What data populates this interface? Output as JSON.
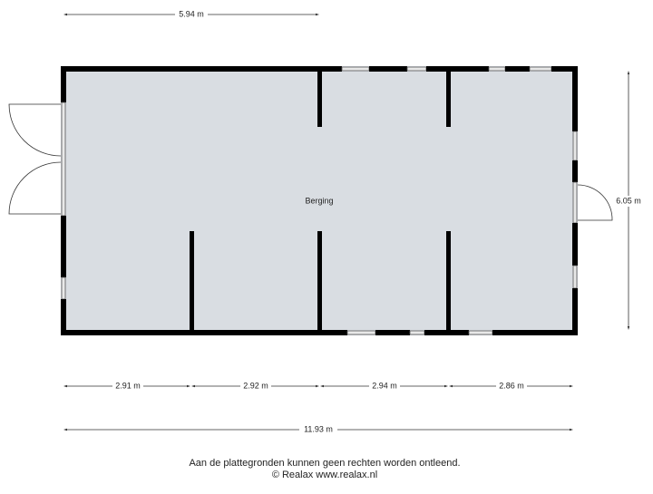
{
  "room": {
    "label": "Berging"
  },
  "dimensions": {
    "top": "5.94 m",
    "right": "6.05 m",
    "bottom": [
      "2.91 m",
      "2.92 m",
      "2.94 m",
      "2.86 m"
    ],
    "total": "11.93 m"
  },
  "footer": {
    "disclaimer": "Aan de plattegronden kunnen geen rechten worden ontleend.",
    "copyright": "© Realax www.realax.nl"
  }
}
